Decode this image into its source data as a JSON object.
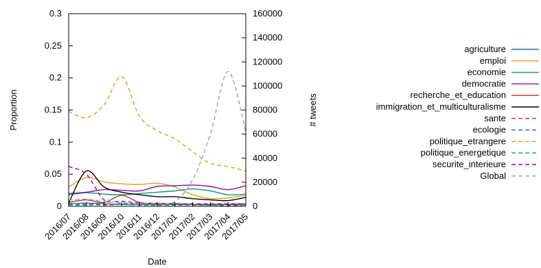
{
  "chart_data": {
    "type": "line",
    "title": "",
    "xlabel": "Date",
    "ylabel": "Proportion",
    "y2label": "# tweets",
    "x": [
      "2016/07",
      "2016/08",
      "2016/09",
      "2016/10",
      "2016/11",
      "2016/12",
      "2017/01",
      "2017/02",
      "2017/03",
      "2017/04",
      "2017/05"
    ],
    "ylim": [
      0,
      0.3
    ],
    "yticks": [
      "0",
      "0.05",
      "0.1",
      "0.15",
      "0.2",
      "0.25",
      "0.3"
    ],
    "y2lim": [
      0,
      160000
    ],
    "y2ticks": [
      "0",
      "20000",
      "40000",
      "60000",
      "80000",
      "100000",
      "120000",
      "140000",
      "160000"
    ],
    "grid": false,
    "legend_position": "right",
    "series": [
      {
        "name": "agriculture",
        "color": "#0072bd",
        "dash": "solid",
        "axis": "left",
        "values": [
          0.004,
          0.005,
          0.004,
          0.003,
          0.003,
          0.003,
          0.003,
          0.003,
          0.003,
          0.003,
          0.004
        ]
      },
      {
        "name": "emploi",
        "color": "#e69f00",
        "dash": "solid",
        "axis": "left",
        "values": [
          0.03,
          0.045,
          0.038,
          0.035,
          0.034,
          0.036,
          0.03,
          0.018,
          0.012,
          0.013,
          0.017
        ]
      },
      {
        "name": "economie",
        "color": "#009e73",
        "dash": "solid",
        "axis": "left",
        "values": [
          0.018,
          0.021,
          0.019,
          0.018,
          0.02,
          0.022,
          0.024,
          0.027,
          0.024,
          0.018,
          0.019
        ]
      },
      {
        "name": "democratie",
        "color": "#9400d3",
        "dash": "solid",
        "axis": "left",
        "values": [
          0.02,
          0.022,
          0.026,
          0.025,
          0.024,
          0.031,
          0.032,
          0.033,
          0.031,
          0.026,
          0.032
        ]
      },
      {
        "name": "recherche_et_education",
        "color": "#e51e10",
        "dash": "solid",
        "axis": "left",
        "values": [
          0.006,
          0.01,
          0.006,
          0.017,
          0.006,
          0.004,
          0.004,
          0.003,
          0.002,
          0.003,
          0.002
        ]
      },
      {
        "name": "immigration_et_multiculturalisme",
        "color": "#000000",
        "dash": "solid",
        "axis": "left",
        "values": [
          0.005,
          0.055,
          0.03,
          0.022,
          0.018,
          0.015,
          0.015,
          0.012,
          0.01,
          0.009,
          0.014
        ]
      },
      {
        "name": "sante",
        "color": "#e51e10",
        "dash": "dashed",
        "axis": "left",
        "values": [
          0.002,
          0.003,
          0.002,
          0.003,
          0.003,
          0.002,
          0.002,
          0.002,
          0.002,
          0.002,
          0.002
        ]
      },
      {
        "name": "ecologie",
        "color": "#0072bd",
        "dash": "dashed",
        "axis": "left",
        "values": [
          0.002,
          0.003,
          0.003,
          0.004,
          0.003,
          0.002,
          0.003,
          0.002,
          0.002,
          0.002,
          0.002
        ]
      },
      {
        "name": "politique_etrangere",
        "color": "#e69f00",
        "dash": "dashed",
        "axis": "left",
        "values": [
          0.148,
          0.138,
          0.158,
          0.202,
          0.14,
          0.118,
          0.105,
          0.085,
          0.067,
          0.062,
          0.055
        ]
      },
      {
        "name": "politique_energetique",
        "color": "#009e73",
        "dash": "dashed",
        "axis": "left",
        "values": [
          0.002,
          0.002,
          0.003,
          0.003,
          0.002,
          0.002,
          0.002,
          0.002,
          0.002,
          0.001,
          0.002
        ]
      },
      {
        "name": "securite_interieure",
        "color": "#9400d3",
        "dash": "dashed",
        "axis": "left",
        "values": [
          0.062,
          0.05,
          0.01,
          0.008,
          0.005,
          0.005,
          0.004,
          0.004,
          0.004,
          0.004,
          0.004
        ]
      },
      {
        "name": "Global",
        "color": "#a0a0a0",
        "dash": "dashed",
        "axis": "right",
        "values": [
          5000,
          6000,
          4000,
          3000,
          2500,
          2500,
          4000,
          22000,
          60000,
          112000,
          62000
        ]
      }
    ]
  }
}
